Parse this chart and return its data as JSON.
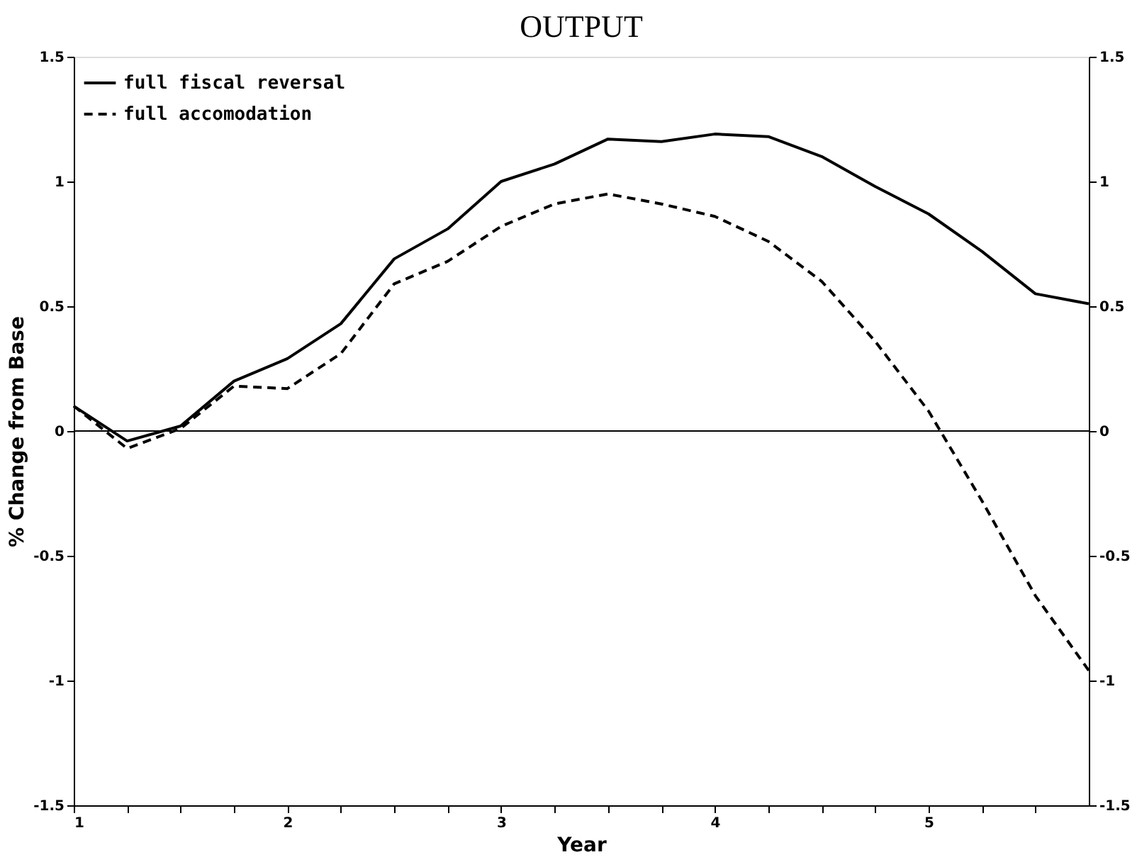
{
  "chart_data": {
    "type": "line",
    "title": "OUTPUT",
    "xlabel": "Year",
    "ylabel": "% Change from Base",
    "x": [
      1,
      1.25,
      1.5,
      1.75,
      2,
      2.25,
      2.5,
      2.75,
      3,
      3.25,
      3.5,
      3.75,
      4,
      4.25,
      4.5,
      4.75,
      5,
      5.25,
      5.5,
      5.75
    ],
    "series": [
      {
        "name": "full fiscal reversal",
        "color": "#000000",
        "line_style": "solid",
        "values": [
          0.1,
          -0.04,
          0.02,
          0.2,
          0.29,
          0.43,
          0.69,
          0.81,
          1.0,
          1.07,
          1.17,
          1.16,
          1.19,
          1.18,
          1.1,
          0.98,
          0.87,
          0.72,
          0.55,
          0.51
        ]
      },
      {
        "name": "full accomodation",
        "color": "#000000",
        "line_style": "dashed",
        "values": [
          0.1,
          -0.07,
          0.01,
          0.18,
          0.17,
          0.31,
          0.59,
          0.68,
          0.82,
          0.91,
          0.95,
          0.91,
          0.86,
          0.76,
          0.6,
          0.36,
          0.08,
          -0.28,
          -0.66,
          -0.96
        ]
      }
    ],
    "xlim": [
      1,
      5.75
    ],
    "xticks": [
      1,
      {
        "value": 1.25,
        "label": null
      },
      {
        "value": 1.5,
        "label": null
      },
      {
        "value": 1.75,
        "label": null
      },
      2,
      {
        "value": 2.25,
        "label": null
      },
      {
        "value": 2.5,
        "label": null
      },
      {
        "value": 2.75,
        "label": null
      },
      3,
      {
        "value": 3.25,
        "label": null
      },
      {
        "value": 3.5,
        "label": null
      },
      {
        "value": 3.75,
        "label": null
      },
      4,
      {
        "value": 4.25,
        "label": null
      },
      {
        "value": 4.5,
        "label": null
      },
      {
        "value": 4.75,
        "label": null
      },
      5,
      {
        "value": 5.25,
        "label": null
      },
      {
        "value": 5.5,
        "label": null
      }
    ],
    "ylim": [
      -1.5,
      1.5
    ],
    "yticks": [
      -1.5,
      -1,
      -0.5,
      0,
      0.5,
      1,
      1.5
    ],
    "y2lim": [
      -1.5,
      1.5
    ],
    "y2ticks": [
      -1.5,
      -1,
      -0.5,
      0,
      0.5,
      1,
      1.5
    ],
    "ref_lines": [
      {
        "axis": "y",
        "value": 0,
        "color": "#000000",
        "line_style": "solid"
      }
    ],
    "grid": false,
    "legend": "top left",
    "marker": "none"
  }
}
